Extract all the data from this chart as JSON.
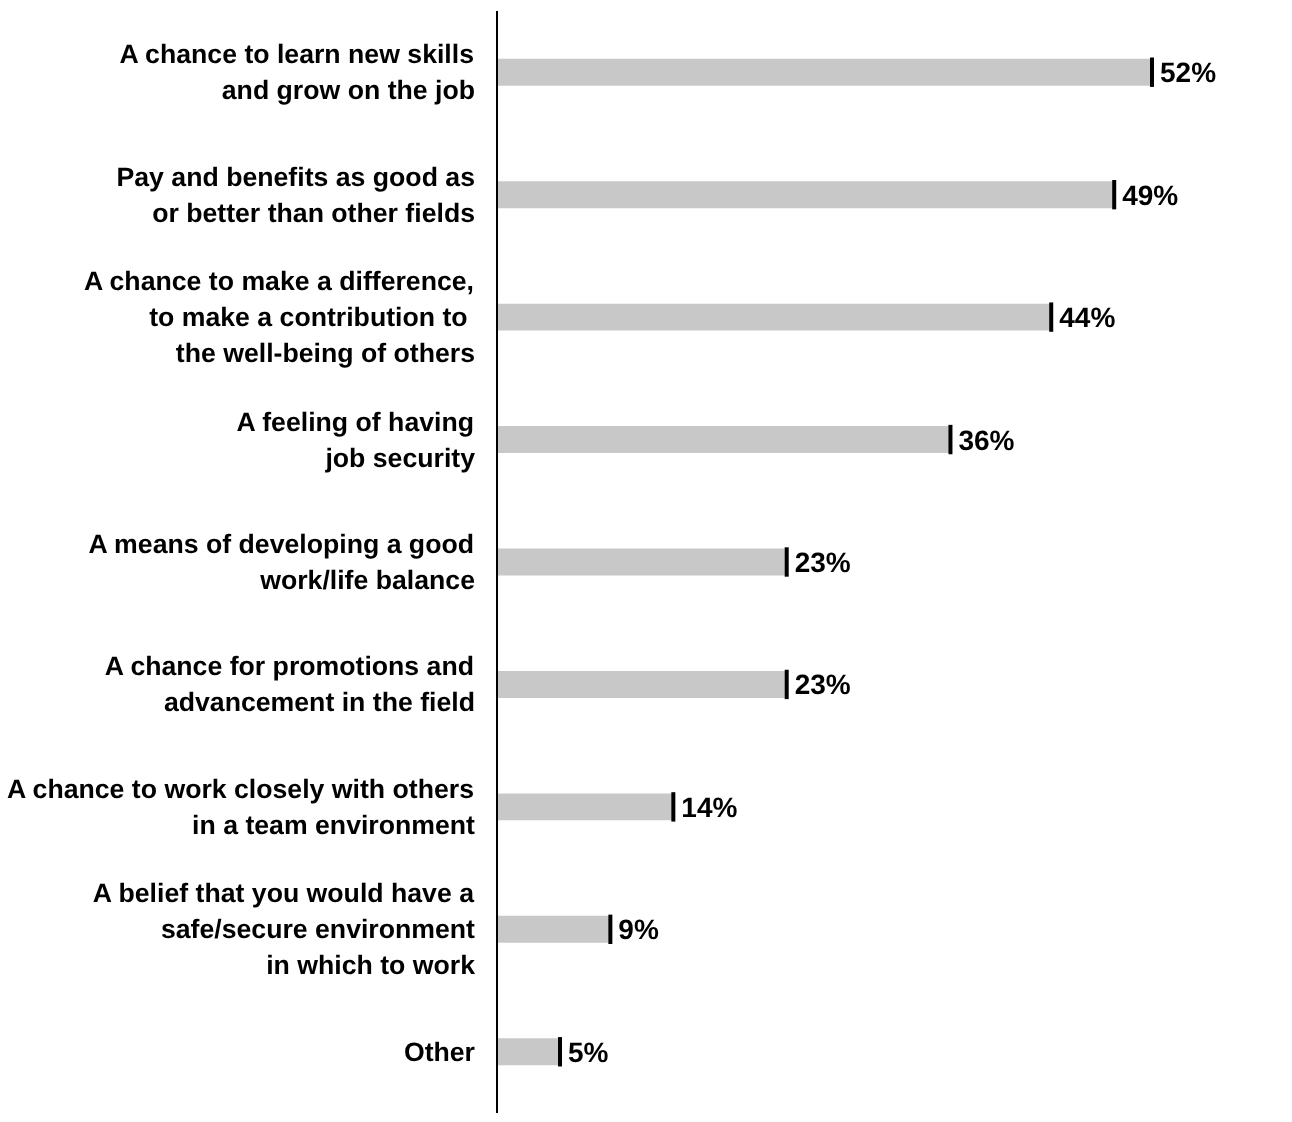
{
  "chart_data": {
    "type": "bar",
    "orientation": "horizontal",
    "categories": [
      "A chance to learn new skills\nand grow on the job",
      "Pay and benefits as good as\nor better than other fields",
      "A chance to make a difference,\nto make a  contribution to\nthe well-being of others",
      "A feeling of having\njob security",
      "A means of developing a good\nwork/life balance",
      "A chance for promotions and\nadvancement in the field",
      "A chance to work closely with others\nin a team environment",
      "A belief that you would have a\nsafe/secure environment\nin which to work",
      "Other"
    ],
    "values": [
      52,
      49,
      44,
      36,
      23,
      23,
      14,
      9,
      5
    ],
    "value_labels": [
      "52%",
      "49%",
      "44%",
      "36%",
      "23%",
      "23%",
      "14%",
      "9%",
      "5%"
    ],
    "color": "#c8c8c8",
    "grid": false,
    "tick_labels": "y"
  }
}
